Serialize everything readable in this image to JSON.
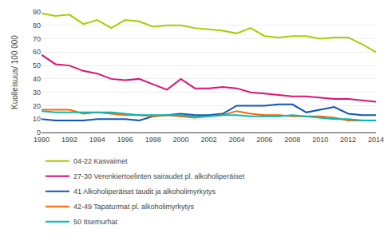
{
  "chart_data": {
    "type": "line",
    "x": [
      1990,
      1991,
      1992,
      1993,
      1994,
      1995,
      1996,
      1997,
      1998,
      1999,
      2000,
      2001,
      2002,
      2003,
      2004,
      2005,
      2006,
      2007,
      2008,
      2009,
      2010,
      2011,
      2012,
      2013,
      2014
    ],
    "series": [
      {
        "name": "04-22 Kasvaimet",
        "color": "#aacc00",
        "values": [
          89,
          87,
          88,
          81,
          84,
          78,
          84,
          83,
          79,
          80,
          80,
          78,
          77,
          76,
          74,
          78,
          72,
          71,
          72,
          72,
          70,
          71,
          71,
          66,
          60
        ]
      },
      {
        "name": "27-30 Verenkiertoelinten sairaudet pl. alkoholiperäiset",
        "color": "#dd1177",
        "values": [
          58,
          51,
          50,
          46,
          44,
          40,
          39,
          40,
          36,
          32,
          40,
          33,
          33,
          34,
          33,
          30,
          29,
          28,
          27,
          27,
          26,
          25,
          25,
          24,
          23
        ]
      },
      {
        "name": "41 Alkoholiperäiset taudit ja alkoholimyrkytys",
        "color": "#1155bb",
        "values": [
          10,
          9,
          9,
          9,
          10,
          10,
          10,
          9,
          12,
          13,
          14,
          13,
          13,
          14,
          20,
          20,
          20,
          21,
          21,
          15,
          17,
          19,
          14,
          13,
          13
        ]
      },
      {
        "name": "42-49 Tapaturmat pl. alkoholimyrkytys",
        "color": "#ff6600",
        "values": [
          17,
          17,
          17,
          14,
          15,
          14,
          13,
          13,
          12,
          13,
          12,
          11,
          12,
          13,
          16,
          14,
          13,
          13,
          12,
          12,
          12,
          11,
          9,
          9,
          9
        ]
      },
      {
        "name": "50 Itsemurhat",
        "color": "#00bbbb",
        "values": [
          16,
          15,
          15,
          15,
          15,
          15,
          14,
          13,
          13,
          13,
          13,
          12,
          12,
          13,
          13,
          12,
          12,
          12,
          13,
          12,
          11,
          10,
          10,
          9,
          9
        ]
      }
    ],
    "ylabel": "Kuolleisuus/ 100 000",
    "xlim": [
      1990,
      2014
    ],
    "xticks": [
      1990,
      1992,
      1994,
      1996,
      1998,
      2000,
      2002,
      2004,
      2006,
      2008,
      2010,
      2012,
      2014
    ],
    "ylim": [
      0,
      90
    ],
    "yticks": [
      0,
      10,
      20,
      30,
      40,
      50,
      60,
      70,
      80,
      90
    ],
    "grid": true,
    "legend": "bottom"
  }
}
